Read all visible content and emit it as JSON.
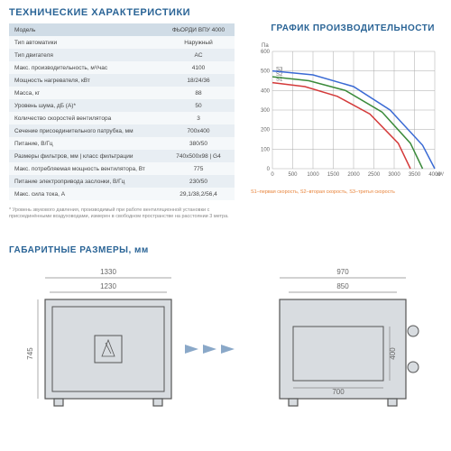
{
  "titles": {
    "tech": "ТЕХНИЧЕСКИЕ ХАРАКТЕРИСТИКИ",
    "chart": "ГРАФИК ПРОИЗВОДИТЕЛЬНОСТИ",
    "dims": "ГАБАРИТНЫЕ РАЗМЕРЫ, мм"
  },
  "table": {
    "header": {
      "c1": "Модель",
      "c2": "ФЬОРДИ ВПУ 4000"
    },
    "rows": [
      {
        "c1": "Тип автоматики",
        "c2": "Наружный"
      },
      {
        "c1": "Тип двигателя",
        "c2": "AC"
      },
      {
        "c1": "Макс. производительность, м³/час",
        "c2": "4100"
      },
      {
        "c1": "Мощность нагревателя, кВт",
        "c2": "18/24/36"
      },
      {
        "c1": "Масса, кг",
        "c2": "88"
      },
      {
        "c1": "Уровень шума, дБ (А)*",
        "c2": "50"
      },
      {
        "c1": "Количество скоростей вентилятора",
        "c2": "3"
      },
      {
        "c1": "Сечение присоединительного патрубка, мм",
        "c2": "700х400"
      },
      {
        "c1": "Питание, В/Гц",
        "c2": "380/50"
      },
      {
        "c1": "Размеры фильтров, мм | класс фильтрации",
        "c2": "740х500х98 | G4"
      },
      {
        "c1": "Макс. потребляемая мощность вентилятора, Вт",
        "c2": "775"
      },
      {
        "c1": "Питание электропривода заслонки, В/Гц",
        "c2": "230/50"
      },
      {
        "c1": "Макс. сила тока, А",
        "c2": "29,1/38,2/56,4"
      }
    ]
  },
  "footnote": "* Уровень звукового давления, производимый при работе вентиляционной установки с присоединёнными воздуховодами, измерен в свободном пространстве на расстоянии 3 метра.",
  "chart": {
    "y_label": "Па",
    "x_label": "м³/ч",
    "y_ticks": [
      0,
      100,
      200,
      300,
      400,
      500,
      600
    ],
    "x_ticks": [
      0,
      500,
      1000,
      1500,
      2000,
      2500,
      3000,
      3500,
      4000
    ],
    "legend": "S1–первая скорость, S2–вторая скорость, S3–третья скорость",
    "series": [
      {
        "name": "S1",
        "color": "#d43a3a",
        "points": [
          [
            0,
            440
          ],
          [
            800,
            420
          ],
          [
            1600,
            370
          ],
          [
            2400,
            280
          ],
          [
            3100,
            130
          ],
          [
            3400,
            0
          ]
        ]
      },
      {
        "name": "S2",
        "color": "#3a8a3a",
        "points": [
          [
            0,
            470
          ],
          [
            900,
            450
          ],
          [
            1800,
            400
          ],
          [
            2700,
            290
          ],
          [
            3400,
            130
          ],
          [
            3700,
            0
          ]
        ]
      },
      {
        "name": "S3",
        "color": "#3a6ad4",
        "points": [
          [
            0,
            500
          ],
          [
            1000,
            480
          ],
          [
            2000,
            420
          ],
          [
            2900,
            300
          ],
          [
            3700,
            120
          ],
          [
            4000,
            0
          ]
        ]
      }
    ],
    "series_labels": {
      "s1": "S1",
      "s2": "S2",
      "s3": "S3"
    }
  },
  "dims": {
    "front": {
      "w_outer": "1330",
      "w_inner": "1230",
      "h": "745"
    },
    "side": {
      "w_outer": "970",
      "w_inner": "850",
      "inner_w": "700",
      "inner_h": "400"
    }
  }
}
